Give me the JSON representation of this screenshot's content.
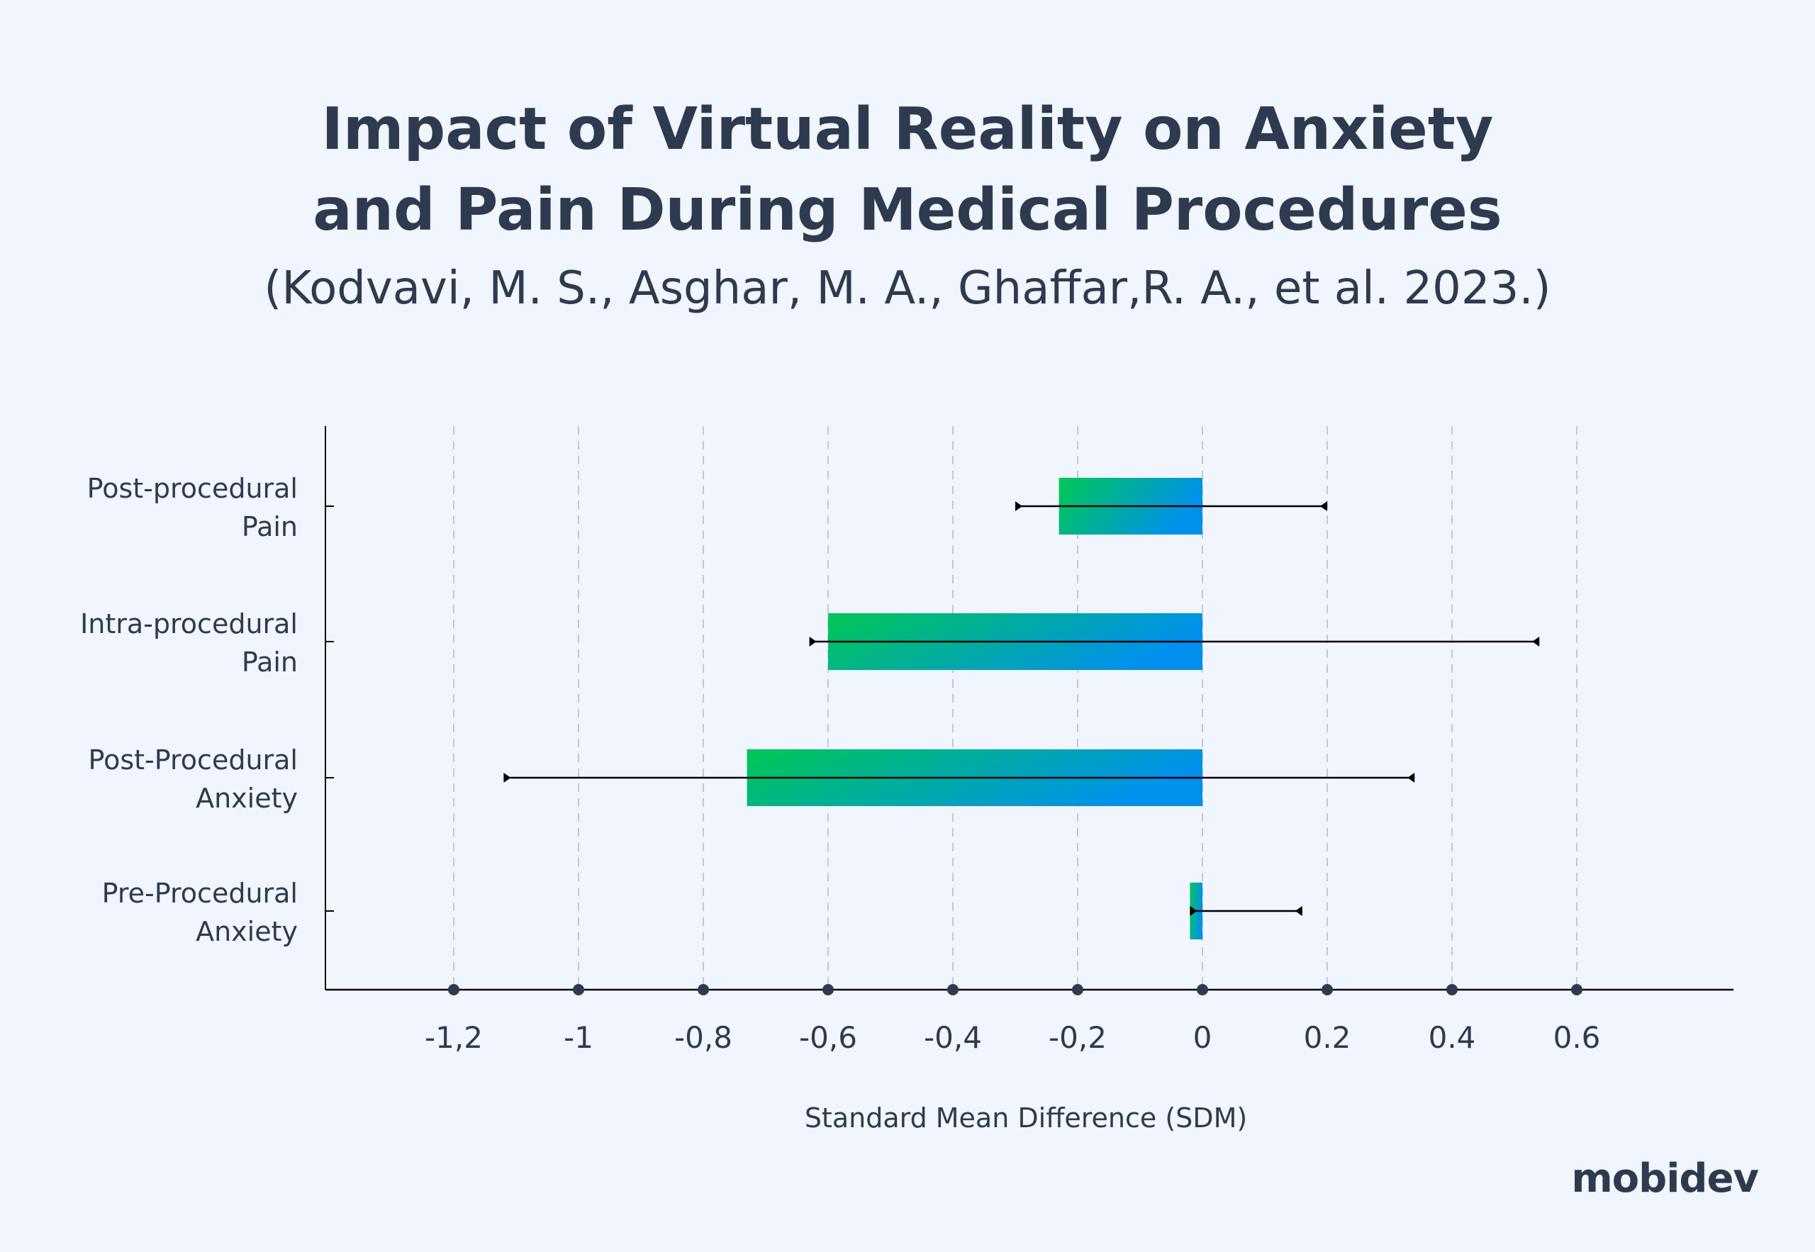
{
  "title_lines": [
    "Impact of Virtual Reality on Anxiety",
    "and Pain During Medical Procedures"
  ],
  "subtitle": "(Kodvavi, M. S., Asghar, M. A., Ghaffar,R. A., et al. 2023.)",
  "logo": "mobidev",
  "chart_data": {
    "type": "bar",
    "orientation": "horizontal",
    "title": "Impact of Virtual Reality on Anxiety and Pain During Medical Procedures",
    "xlabel": "Standard Mean Difference (SDM)",
    "ylabel": "",
    "xlim": [
      -1.4,
      0.85
    ],
    "grid": true,
    "x_ticks": [
      -1.2,
      -1,
      -0.8,
      -0.6,
      -0.4,
      -0.2,
      0,
      0.2,
      0.4,
      0.6
    ],
    "x_tick_labels": [
      "-1,2",
      "-1",
      "-0,8",
      "-0,6",
      "-0,4",
      "-0,2",
      "0",
      "0.2",
      "0.4",
      "0.6"
    ],
    "categories": [
      [
        "Post-procedural",
        "Pain"
      ],
      [
        "Intra-procedural",
        "Pain"
      ],
      [
        "Post-Procedural",
        "Anxiety"
      ],
      [
        "Pre-Procedural",
        "Anxiety"
      ]
    ],
    "values": [
      -0.23,
      -0.6,
      -0.73,
      -0.02
    ],
    "ci_lower": [
      -0.3,
      -0.63,
      -1.12,
      -0.02
    ],
    "ci_upper": [
      0.2,
      0.54,
      0.34,
      0.16
    ],
    "colors": {
      "gradient_start": "#00c853",
      "gradient_end": "#0091ee",
      "text": "#2e3a4e",
      "background": "#f0f5fe"
    }
  }
}
